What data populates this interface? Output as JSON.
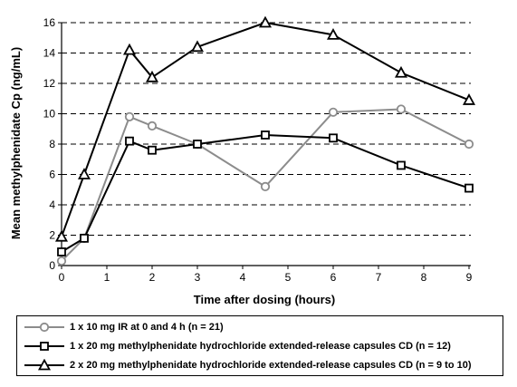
{
  "chart_data": {
    "type": "line",
    "xlabel": "Time after dosing (hours)",
    "ylabel": "Mean methylphenidate Cp (ng/mL)",
    "xlim": [
      0,
      9
    ],
    "ylim": [
      0,
      16
    ],
    "xticks": [
      0,
      1,
      2,
      3,
      4,
      5,
      6,
      7,
      8,
      9
    ],
    "yticks": [
      0,
      2,
      4,
      6,
      8,
      10,
      12,
      14,
      16
    ],
    "grid": "horizontal dashed",
    "legend": "bottom",
    "series": [
      {
        "name": "1 x 10 mg IR at 0 and 4 h (n = 21)",
        "marker": "circle",
        "color": "#8c8c8c",
        "x": [
          0,
          0.5,
          1.5,
          2,
          3,
          4.5,
          6,
          7.5,
          9
        ],
        "y": [
          0.3,
          1.8,
          9.8,
          9.2,
          8.0,
          5.2,
          10.1,
          10.3,
          8.0
        ]
      },
      {
        "name": "1 x 20 mg methylphenidate hydrochloride extended-release capsules CD (n = 12)",
        "marker": "square",
        "color": "#000000",
        "x": [
          0,
          0.5,
          1.5,
          2,
          3,
          4.5,
          6,
          7.5,
          9
        ],
        "y": [
          0.9,
          1.8,
          8.2,
          7.6,
          8.0,
          8.6,
          8.4,
          6.6,
          5.1
        ]
      },
      {
        "name": "2 x 20 mg methylphenidate hydrochloride extended-release capsules CD (n = 9 to 10)",
        "marker": "triangle",
        "color": "#000000",
        "x": [
          0,
          0.5,
          1.5,
          2,
          3,
          4.5,
          6,
          7.5,
          9
        ],
        "y": [
          1.9,
          6.0,
          14.2,
          12.4,
          14.4,
          16.0,
          15.2,
          12.7,
          10.9
        ]
      }
    ]
  }
}
